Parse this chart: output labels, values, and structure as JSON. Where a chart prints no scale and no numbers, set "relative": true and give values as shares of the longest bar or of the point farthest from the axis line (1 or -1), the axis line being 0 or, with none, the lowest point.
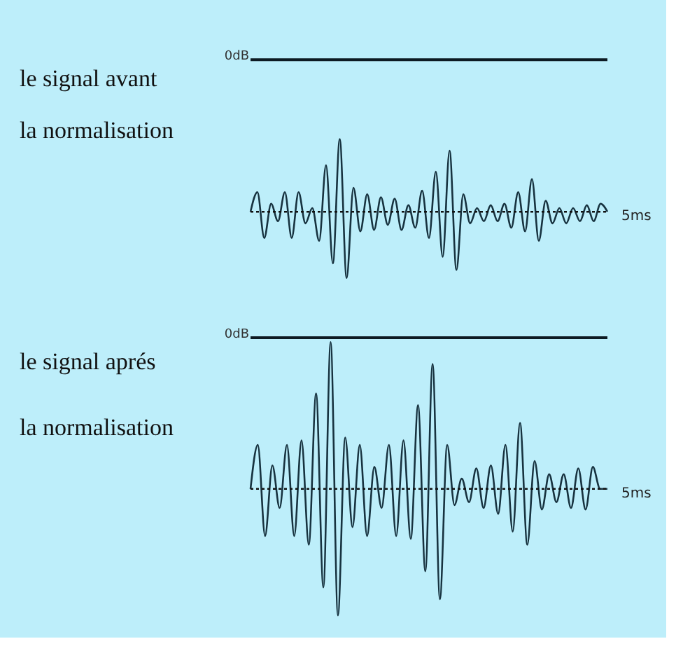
{
  "chart_data": [
    {
      "type": "line",
      "title": "le signal avant la normalisation",
      "relative": true,
      "color": "#17323f",
      "annotations": [
        "5ms"
      ],
      "ref_lines": [
        {
          "axis": "y",
          "value": 2.09,
          "label": "0dB",
          "color": "#0d1a22"
        },
        {
          "axis": "y",
          "value": 0,
          "color": "#111111",
          "line_style": "dotted"
        }
      ],
      "categories": [
        null,
        null,
        null,
        null,
        null,
        null,
        null,
        null,
        null,
        null,
        null,
        null,
        null,
        null,
        null,
        null,
        null,
        null,
        null,
        null,
        null,
        null,
        null,
        null,
        null,
        null,
        null,
        null,
        null,
        null,
        null,
        null,
        null,
        null,
        null,
        null,
        null,
        null,
        null,
        null,
        null,
        null,
        null,
        null,
        null,
        null,
        null,
        null,
        null,
        null,
        null,
        null,
        null
      ],
      "values": [
        0,
        0.27,
        -0.36,
        0.11,
        -0.13,
        0.27,
        -0.36,
        0.27,
        -0.16,
        0.05,
        -0.4,
        0.64,
        -0.71,
        1,
        -0.91,
        0.33,
        -0.27,
        0.24,
        -0.25,
        0.2,
        -0.18,
        0.18,
        -0.25,
        0.09,
        -0.22,
        0.29,
        -0.36,
        0.55,
        -0.62,
        0.84,
        -0.8,
        0.24,
        -0.16,
        0.05,
        -0.13,
        0.09,
        -0.13,
        0.11,
        -0.22,
        0.27,
        -0.27,
        0.45,
        -0.4,
        0.15,
        -0.16,
        0.05,
        -0.16,
        0.05,
        -0.13,
        0.09,
        -0.13,
        0.11,
        0
      ]
    },
    {
      "type": "line",
      "title": "le signal aprés la normalisation",
      "relative": true,
      "color": "#17323f",
      "annotations": [
        "5ms"
      ],
      "ref_lines": [
        {
          "axis": "y",
          "value": 1.03,
          "label": "0dB",
          "color": "#0d1a22"
        },
        {
          "axis": "y",
          "value": 0,
          "color": "#111111",
          "line_style": "dotted"
        }
      ],
      "categories": [
        null,
        null,
        null,
        null,
        null,
        null,
        null,
        null,
        null,
        null,
        null,
        null,
        null,
        null,
        null,
        null,
        null,
        null,
        null,
        null,
        null,
        null,
        null,
        null,
        null,
        null,
        null,
        null,
        null,
        null,
        null,
        null,
        null,
        null,
        null,
        null,
        null,
        null,
        null,
        null,
        null,
        null,
        null,
        null,
        null,
        null,
        null,
        null,
        null,
        null
      ],
      "values": [
        0,
        0.3,
        -0.32,
        0.16,
        -0.13,
        0.3,
        -0.32,
        0.33,
        -0.38,
        0.65,
        -0.67,
        1,
        -0.86,
        0.35,
        -0.26,
        0.3,
        -0.32,
        0.15,
        -0.13,
        0.3,
        -0.32,
        0.33,
        -0.34,
        0.57,
        -0.56,
        0.85,
        -0.75,
        0.3,
        -0.11,
        0.07,
        -0.09,
        0.14,
        -0.13,
        0.16,
        -0.17,
        0.3,
        -0.29,
        0.45,
        -0.38,
        0.19,
        -0.14,
        0.1,
        -0.09,
        0.1,
        -0.13,
        0.14,
        -0.14,
        0.15,
        0,
        0
      ]
    }
  ]
}
